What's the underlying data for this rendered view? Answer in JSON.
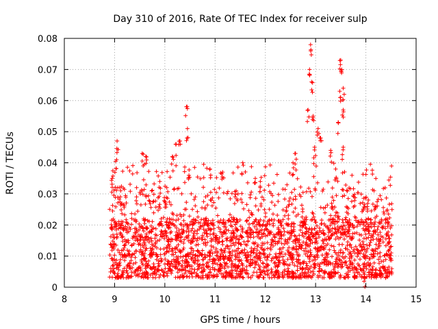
{
  "chart_data": {
    "type": "scatter",
    "title": "Day 310 of 2016, Rate Of TEC Index for receiver sulp",
    "xlabel": "GPS time / hours",
    "ylabel": "ROTI / TECUs",
    "xlim": [
      8,
      15
    ],
    "ylim": [
      0,
      0.08
    ],
    "xticks": [
      "8",
      "9",
      "10",
      "11",
      "12",
      "13",
      "14",
      "15"
    ],
    "yticks": [
      "0",
      "0.01",
      "0.02",
      "0.03",
      "0.04",
      "0.05",
      "0.06",
      "0.07",
      "0.08"
    ],
    "grid": true,
    "marker": "+",
    "color": "#ff0000",
    "series": [
      {
        "name": "ROTI",
        "x_range": [
          8.9,
          14.52
        ],
        "typical_range": [
          0.003,
          0.022
        ],
        "notable_points": [
          {
            "x": 8.95,
            "y": 0.035
          },
          {
            "x": 9.05,
            "y": 0.047
          },
          {
            "x": 9.04,
            "y": 0.041
          },
          {
            "x": 9.55,
            "y": 0.043
          },
          {
            "x": 9.62,
            "y": 0.042
          },
          {
            "x": 9.9,
            "y": 0.034
          },
          {
            "x": 10.15,
            "y": 0.042
          },
          {
            "x": 10.22,
            "y": 0.046
          },
          {
            "x": 10.3,
            "y": 0.047
          },
          {
            "x": 10.43,
            "y": 0.058
          },
          {
            "x": 10.45,
            "y": 0.051
          },
          {
            "x": 10.48,
            "y": 0.036
          },
          {
            "x": 10.9,
            "y": 0.038
          },
          {
            "x": 11.15,
            "y": 0.037
          },
          {
            "x": 11.55,
            "y": 0.04
          },
          {
            "x": 11.8,
            "y": 0.035
          },
          {
            "x": 11.9,
            "y": 0.034
          },
          {
            "x": 12.6,
            "y": 0.043
          },
          {
            "x": 12.55,
            "y": 0.04
          },
          {
            "x": 12.85,
            "y": 0.057
          },
          {
            "x": 12.88,
            "y": 0.07
          },
          {
            "x": 12.9,
            "y": 0.078
          },
          {
            "x": 12.92,
            "y": 0.066
          },
          {
            "x": 12.95,
            "y": 0.055
          },
          {
            "x": 12.98,
            "y": 0.045
          },
          {
            "x": 13.05,
            "y": 0.051
          },
          {
            "x": 13.1,
            "y": 0.048
          },
          {
            "x": 13.3,
            "y": 0.044
          },
          {
            "x": 13.45,
            "y": 0.053
          },
          {
            "x": 13.48,
            "y": 0.063
          },
          {
            "x": 13.5,
            "y": 0.073
          },
          {
            "x": 13.52,
            "y": 0.07
          },
          {
            "x": 13.55,
            "y": 0.064
          },
          {
            "x": 13.55,
            "y": 0.057
          },
          {
            "x": 13.55,
            "y": 0.045
          },
          {
            "x": 13.4,
            "y": 0.038
          },
          {
            "x": 14.05,
            "y": 0.028
          },
          {
            "x": 14.2,
            "y": 0.026
          },
          {
            "x": 13.98,
            "y": 0.003
          }
        ]
      }
    ]
  }
}
